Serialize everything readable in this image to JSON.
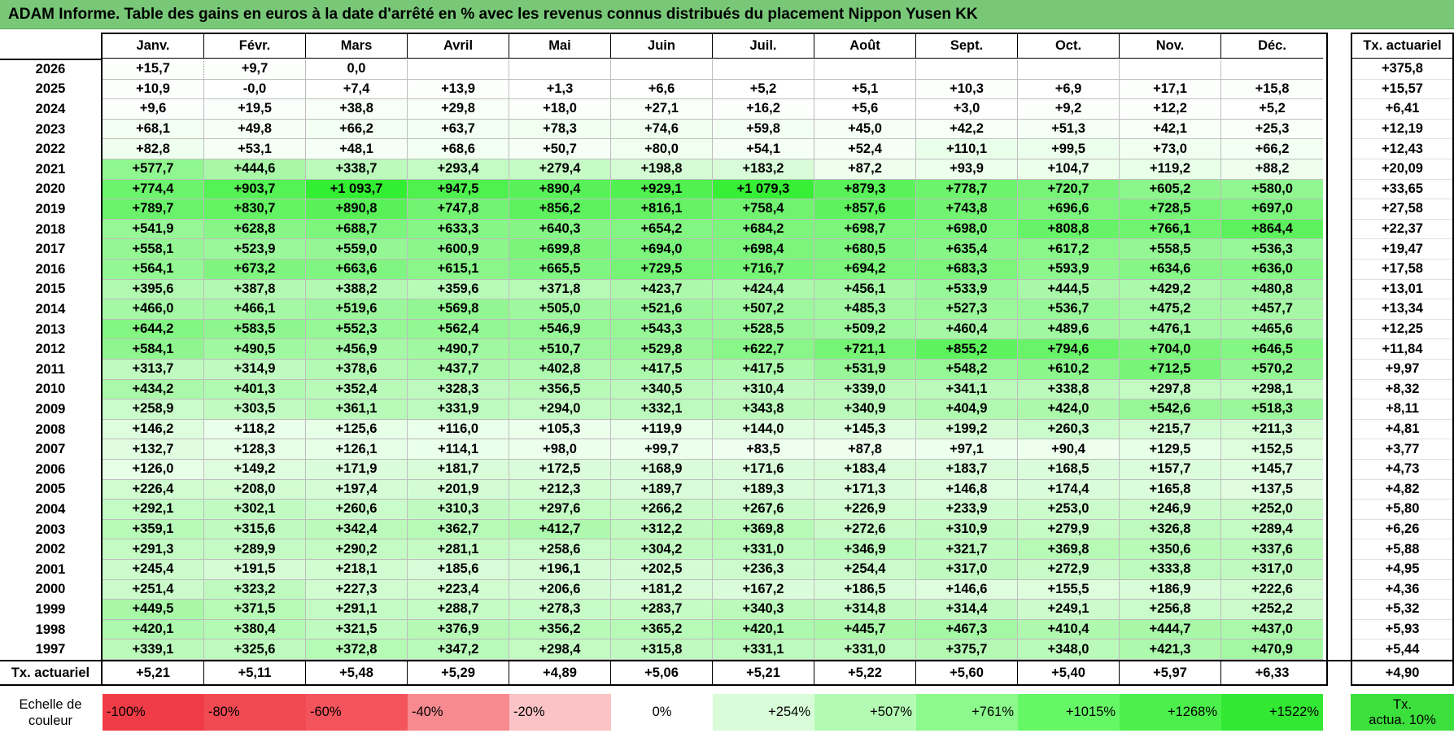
{
  "title": "ADAM Informe. Table des gains en euros à la date d'arrêté en % avec les revenus connus distribués du placement Nippon Yusen KK",
  "chart_data": {
    "type": "table",
    "months": [
      "Janv.",
      "Févr.",
      "Mars",
      "Avril",
      "Mai",
      "Juin",
      "Juil.",
      "Août",
      "Sept.",
      "Oct.",
      "Nov.",
      "Déc."
    ],
    "actuarial_header": "Tx. actuariel",
    "rows": [
      {
        "year": "2026",
        "values": [
          "+15,7",
          "+9,7",
          "0,0",
          "",
          "",
          "",
          "",
          "",
          "",
          "",
          "",
          ""
        ],
        "actuarial": "+375,8"
      },
      {
        "year": "2025",
        "values": [
          "+10,9",
          "-0,0",
          "+7,4",
          "+13,9",
          "+1,3",
          "+6,6",
          "+5,2",
          "+5,1",
          "+10,3",
          "+6,9",
          "+17,1",
          "+15,8"
        ],
        "actuarial": "+15,57"
      },
      {
        "year": "2024",
        "values": [
          "+9,6",
          "+19,5",
          "+38,8",
          "+29,8",
          "+18,0",
          "+27,1",
          "+16,2",
          "+5,6",
          "+3,0",
          "+9,2",
          "+12,2",
          "+5,2"
        ],
        "actuarial": "+6,41"
      },
      {
        "year": "2023",
        "values": [
          "+68,1",
          "+49,8",
          "+66,2",
          "+63,7",
          "+78,3",
          "+74,6",
          "+59,8",
          "+45,0",
          "+42,2",
          "+51,3",
          "+42,1",
          "+25,3"
        ],
        "actuarial": "+12,19"
      },
      {
        "year": "2022",
        "values": [
          "+82,8",
          "+53,1",
          "+48,1",
          "+68,6",
          "+50,7",
          "+80,0",
          "+54,1",
          "+52,4",
          "+110,1",
          "+99,5",
          "+73,0",
          "+66,2"
        ],
        "actuarial": "+12,43"
      },
      {
        "year": "2021",
        "values": [
          "+577,7",
          "+444,6",
          "+338,7",
          "+293,4",
          "+279,4",
          "+198,8",
          "+183,2",
          "+87,2",
          "+93,9",
          "+104,7",
          "+119,2",
          "+88,2"
        ],
        "actuarial": "+20,09"
      },
      {
        "year": "2020",
        "values": [
          "+774,4",
          "+903,7",
          "+1 093,7",
          "+947,5",
          "+890,4",
          "+929,1",
          "+1 079,3",
          "+879,3",
          "+778,7",
          "+720,7",
          "+605,2",
          "+580,0"
        ],
        "actuarial": "+33,65"
      },
      {
        "year": "2019",
        "values": [
          "+789,7",
          "+830,7",
          "+890,8",
          "+747,8",
          "+856,2",
          "+816,1",
          "+758,4",
          "+857,6",
          "+743,8",
          "+696,6",
          "+728,5",
          "+697,0"
        ],
        "actuarial": "+27,58"
      },
      {
        "year": "2018",
        "values": [
          "+541,9",
          "+628,8",
          "+688,7",
          "+633,3",
          "+640,3",
          "+654,2",
          "+684,2",
          "+698,7",
          "+698,0",
          "+808,8",
          "+766,1",
          "+864,4"
        ],
        "actuarial": "+22,37"
      },
      {
        "year": "2017",
        "values": [
          "+558,1",
          "+523,9",
          "+559,0",
          "+600,9",
          "+699,8",
          "+694,0",
          "+698,4",
          "+680,5",
          "+635,4",
          "+617,2",
          "+558,5",
          "+536,3"
        ],
        "actuarial": "+19,47"
      },
      {
        "year": "2016",
        "values": [
          "+564,1",
          "+673,2",
          "+663,6",
          "+615,1",
          "+665,5",
          "+729,5",
          "+716,7",
          "+694,2",
          "+683,3",
          "+593,9",
          "+634,6",
          "+636,0"
        ],
        "actuarial": "+17,58"
      },
      {
        "year": "2015",
        "values": [
          "+395,6",
          "+387,8",
          "+388,2",
          "+359,6",
          "+371,8",
          "+423,7",
          "+424,4",
          "+456,1",
          "+533,9",
          "+444,5",
          "+429,2",
          "+480,8"
        ],
        "actuarial": "+13,01"
      },
      {
        "year": "2014",
        "values": [
          "+466,0",
          "+466,1",
          "+519,6",
          "+569,8",
          "+505,0",
          "+521,6",
          "+507,2",
          "+485,3",
          "+527,3",
          "+536,7",
          "+475,2",
          "+457,7"
        ],
        "actuarial": "+13,34"
      },
      {
        "year": "2013",
        "values": [
          "+644,2",
          "+583,5",
          "+552,3",
          "+562,4",
          "+546,9",
          "+543,3",
          "+528,5",
          "+509,2",
          "+460,4",
          "+489,6",
          "+476,1",
          "+465,6"
        ],
        "actuarial": "+12,25"
      },
      {
        "year": "2012",
        "values": [
          "+584,1",
          "+490,5",
          "+456,9",
          "+490,7",
          "+510,7",
          "+529,8",
          "+622,7",
          "+721,1",
          "+855,2",
          "+794,6",
          "+704,0",
          "+646,5"
        ],
        "actuarial": "+11,84"
      },
      {
        "year": "2011",
        "values": [
          "+313,7",
          "+314,9",
          "+378,6",
          "+437,7",
          "+402,8",
          "+417,5",
          "+417,5",
          "+531,9",
          "+548,2",
          "+610,2",
          "+712,5",
          "+570,2"
        ],
        "actuarial": "+9,97"
      },
      {
        "year": "2010",
        "values": [
          "+434,2",
          "+401,3",
          "+352,4",
          "+328,3",
          "+356,5",
          "+340,5",
          "+310,4",
          "+339,0",
          "+341,1",
          "+338,8",
          "+297,8",
          "+298,1"
        ],
        "actuarial": "+8,32"
      },
      {
        "year": "2009",
        "values": [
          "+258,9",
          "+303,5",
          "+361,1",
          "+331,9",
          "+294,0",
          "+332,1",
          "+343,8",
          "+340,9",
          "+404,9",
          "+424,0",
          "+542,6",
          "+518,3"
        ],
        "actuarial": "+8,11"
      },
      {
        "year": "2008",
        "values": [
          "+146,2",
          "+118,2",
          "+125,6",
          "+116,0",
          "+105,3",
          "+119,9",
          "+144,0",
          "+145,3",
          "+199,2",
          "+260,3",
          "+215,7",
          "+211,3"
        ],
        "actuarial": "+4,81"
      },
      {
        "year": "2007",
        "values": [
          "+132,7",
          "+128,3",
          "+126,1",
          "+114,1",
          "+98,0",
          "+99,7",
          "+83,5",
          "+87,8",
          "+97,1",
          "+90,4",
          "+129,5",
          "+152,5"
        ],
        "actuarial": "+3,77"
      },
      {
        "year": "2006",
        "values": [
          "+126,0",
          "+149,2",
          "+171,9",
          "+181,7",
          "+172,5",
          "+168,9",
          "+171,6",
          "+183,4",
          "+183,7",
          "+168,5",
          "+157,7",
          "+145,7"
        ],
        "actuarial": "+4,73"
      },
      {
        "year": "2005",
        "values": [
          "+226,4",
          "+208,0",
          "+197,4",
          "+201,9",
          "+212,3",
          "+189,7",
          "+189,3",
          "+171,3",
          "+146,8",
          "+174,4",
          "+165,8",
          "+137,5"
        ],
        "actuarial": "+4,82"
      },
      {
        "year": "2004",
        "values": [
          "+292,1",
          "+302,1",
          "+260,6",
          "+310,3",
          "+297,6",
          "+266,2",
          "+267,6",
          "+226,9",
          "+233,9",
          "+253,0",
          "+246,9",
          "+252,0"
        ],
        "actuarial": "+5,80"
      },
      {
        "year": "2003",
        "values": [
          "+359,1",
          "+315,6",
          "+342,4",
          "+362,7",
          "+412,7",
          "+312,2",
          "+369,8",
          "+272,6",
          "+310,9",
          "+279,9",
          "+326,8",
          "+289,4"
        ],
        "actuarial": "+6,26"
      },
      {
        "year": "2002",
        "values": [
          "+291,3",
          "+289,9",
          "+290,2",
          "+281,1",
          "+258,6",
          "+304,2",
          "+331,0",
          "+346,9",
          "+321,7",
          "+369,8",
          "+350,6",
          "+337,6"
        ],
        "actuarial": "+5,88"
      },
      {
        "year": "2001",
        "values": [
          "+245,4",
          "+191,5",
          "+218,1",
          "+185,6",
          "+196,1",
          "+202,5",
          "+236,3",
          "+254,4",
          "+317,0",
          "+272,9",
          "+333,8",
          "+317,0"
        ],
        "actuarial": "+4,95"
      },
      {
        "year": "2000",
        "values": [
          "+251,4",
          "+323,2",
          "+227,3",
          "+223,4",
          "+206,6",
          "+181,2",
          "+167,2",
          "+186,5",
          "+146,6",
          "+155,5",
          "+186,9",
          "+222,6"
        ],
        "actuarial": "+4,36"
      },
      {
        "year": "1999",
        "values": [
          "+449,5",
          "+371,5",
          "+291,1",
          "+288,7",
          "+278,3",
          "+283,7",
          "+340,3",
          "+314,8",
          "+314,4",
          "+249,1",
          "+256,8",
          "+252,2"
        ],
        "actuarial": "+5,32"
      },
      {
        "year": "1998",
        "values": [
          "+420,1",
          "+380,4",
          "+321,5",
          "+376,9",
          "+356,2",
          "+365,2",
          "+420,1",
          "+445,7",
          "+467,3",
          "+410,4",
          "+444,7",
          "+437,0"
        ],
        "actuarial": "+5,93"
      },
      {
        "year": "1997",
        "values": [
          "+339,1",
          "+325,6",
          "+372,8",
          "+347,2",
          "+298,4",
          "+315,8",
          "+331,1",
          "+331,0",
          "+375,7",
          "+348,0",
          "+421,3",
          "+470,9"
        ],
        "actuarial": "+5,44"
      }
    ],
    "footer": {
      "label": "Tx. actuariel",
      "values": [
        "+5,21",
        "+5,11",
        "+5,48",
        "+5,29",
        "+4,89",
        "+5,06",
        "+5,21",
        "+5,22",
        "+5,60",
        "+5,40",
        "+5,97",
        "+6,33"
      ],
      "total": "+4,90"
    },
    "scale": {
      "label_line1": "Echelle de",
      "label_line2": "couleur",
      "steps": [
        {
          "text": "-100%",
          "color": "#f03c46"
        },
        {
          "text": "-80%",
          "color": "#f24a52"
        },
        {
          "text": "-60%",
          "color": "#f4545c"
        },
        {
          "text": "-40%",
          "color": "#f78a8f"
        },
        {
          "text": "-20%",
          "color": "#fbc3c5"
        },
        {
          "text": "0%",
          "color": "#ffffff"
        },
        {
          "text": "+254%",
          "color": "#d9fdd9"
        },
        {
          "text": "+507%",
          "color": "#b3fbb3"
        },
        {
          "text": "+761%",
          "color": "#8cf98c"
        },
        {
          "text": "+1015%",
          "color": "#66f766"
        },
        {
          "text": "+1268%",
          "color": "#4cf04c"
        },
        {
          "text": "+1522%",
          "color": "#33e833"
        }
      ],
      "actuarial_line1": "Tx.",
      "actuarial_line2": "actua. 10%",
      "actuarial_color": "#3ce03c"
    }
  }
}
